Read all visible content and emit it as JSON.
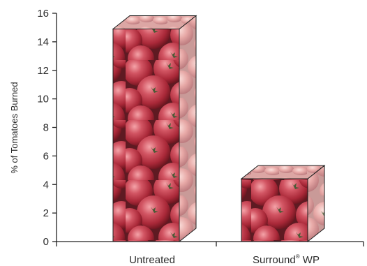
{
  "chart_data": {
    "type": "bar",
    "title": "",
    "xlabel": "",
    "ylabel": "% of Tomatoes Burned",
    "ylim": [
      0,
      16
    ],
    "yticks": [
      0,
      2,
      4,
      6,
      8,
      10,
      12,
      14,
      16
    ],
    "categories": [
      {
        "label": "Untreated",
        "superscript": "",
        "suffix": ""
      },
      {
        "label": "Surround",
        "superscript": "®",
        "suffix": " WP"
      }
    ],
    "values": [
      14.9,
      4.4
    ],
    "bar_fill": "tomato-photo-texture",
    "grid": false,
    "legend": "none"
  },
  "colors": {
    "axis": "#222222",
    "text": "#2b2b2b",
    "tomato_base": "#b8374a",
    "tomato_light": "#e4848c",
    "tomato_dark": "#7a1a24",
    "stem": "#4d5a36"
  }
}
